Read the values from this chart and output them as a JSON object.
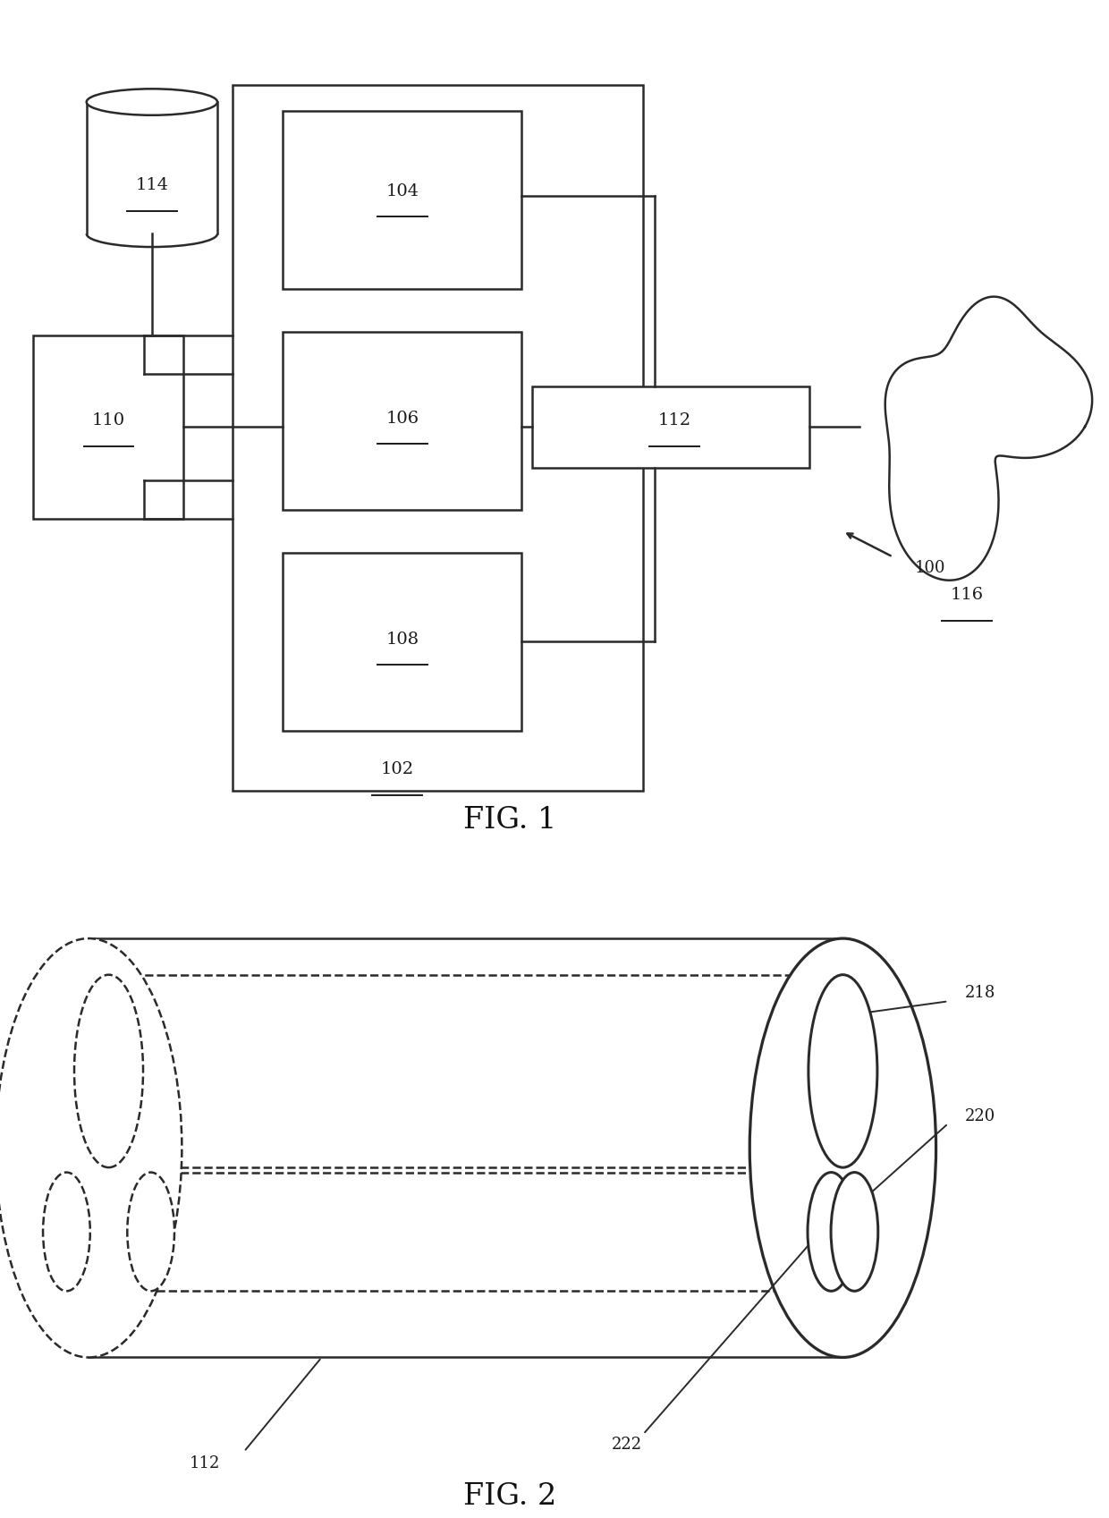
{
  "bg_color": "#ffffff",
  "line_color": "#2a2a2a",
  "fig1_title": "FIG. 1",
  "fig2_title": "FIG. 2",
  "lw": 1.8
}
